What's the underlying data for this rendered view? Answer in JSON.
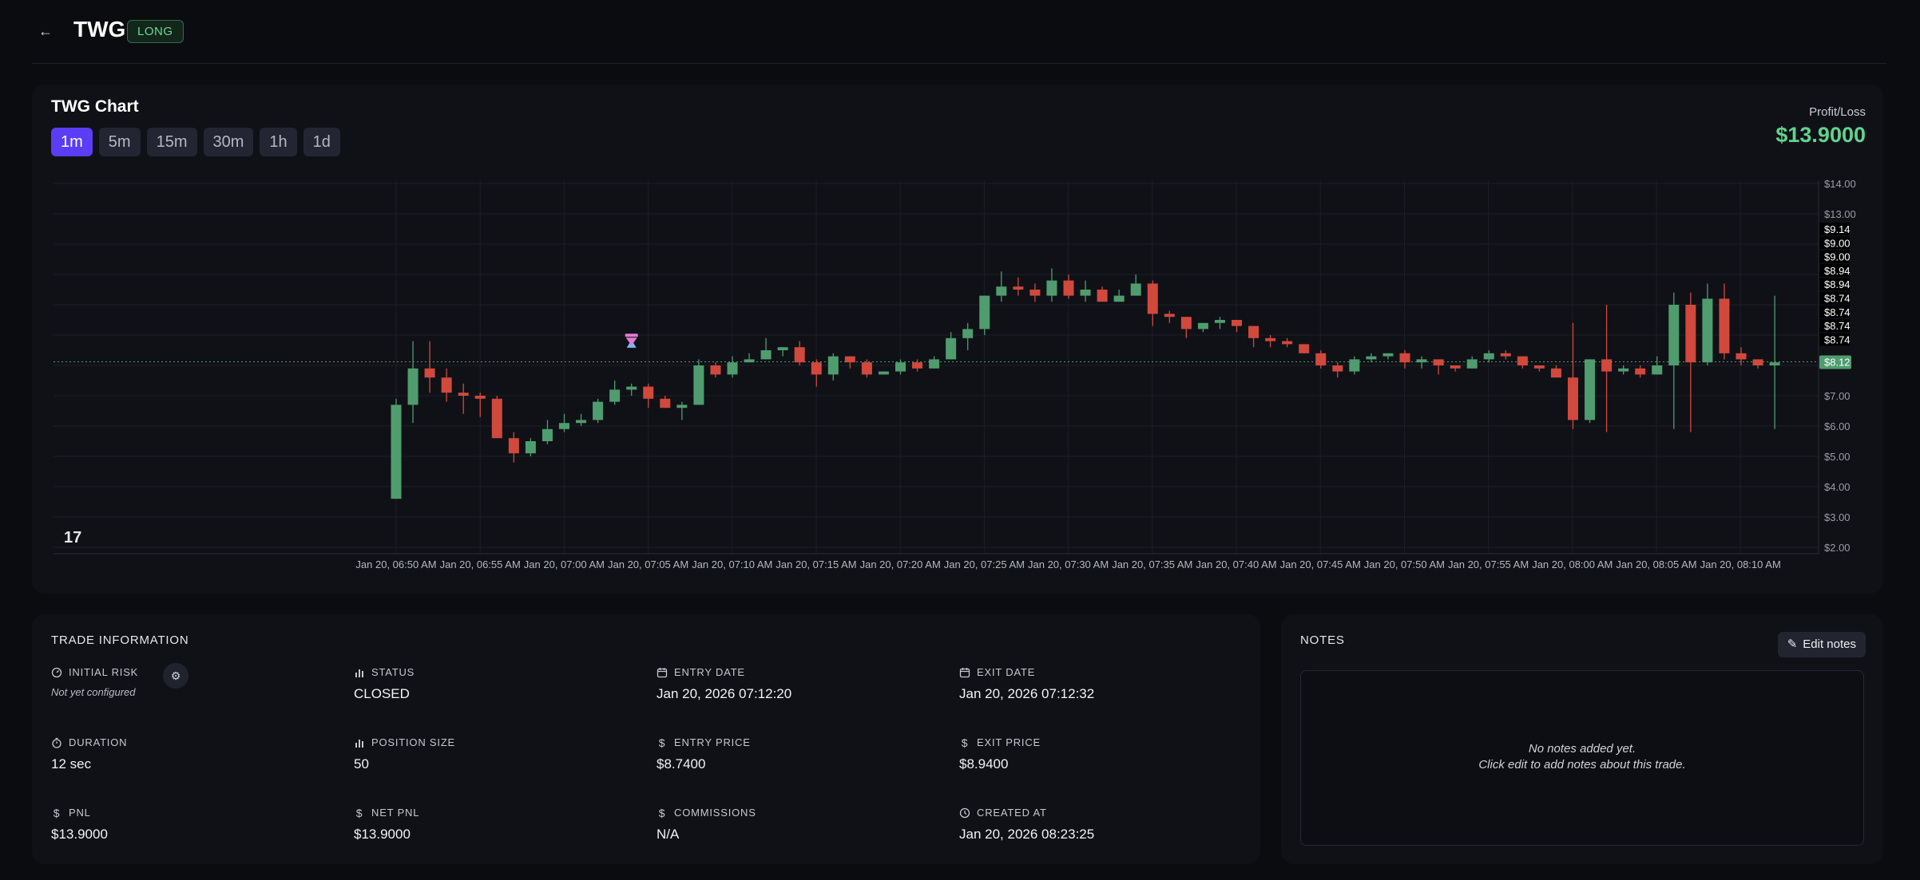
{
  "header": {
    "ticker": "TWG",
    "direction": "LONG"
  },
  "chart_card": {
    "title": "TWG Chart",
    "timeframes": [
      "1m",
      "5m",
      "15m",
      "30m",
      "1h",
      "1d"
    ],
    "active_timeframe": "1m",
    "profit_loss_label": "Profit/Loss",
    "profit_loss_value": "$13.9000"
  },
  "chart_data": {
    "type": "candlestick",
    "y_ticks": [
      "$14.00",
      "$13.00",
      "$7.00",
      "$6.00",
      "$5.00",
      "$4.00",
      "$3.00",
      "$2.00"
    ],
    "ylim": [
      2,
      14
    ],
    "x_ticks": [
      "Jan 20, 06:50 AM",
      "Jan 20, 06:55 AM",
      "Jan 20, 07:00 AM",
      "Jan 20, 07:05 AM",
      "Jan 20, 07:10 AM",
      "Jan 20, 07:15 AM",
      "Jan 20, 07:20 AM",
      "Jan 20, 07:25 AM",
      "Jan 20, 07:30 AM",
      "Jan 20, 07:35 AM",
      "Jan 20, 07:40 AM",
      "Jan 20, 07:45 AM",
      "Jan 20, 07:50 AM",
      "Jan 20, 07:55 AM",
      "Jan 20, 08:00 AM",
      "Jan 20, 08:05 AM",
      "Jan 20, 08:10 AM"
    ],
    "price_tags": [
      "$9.14",
      "$9.00",
      "$9.00",
      "$8.94",
      "$8.94",
      "$8.74",
      "$8.74",
      "$8.74",
      "$8.74"
    ],
    "current_price": "$8.12",
    "current_price_value": 8.12,
    "entry_marker_price": 8.74,
    "exit_marker_price": 8.94,
    "candles": [
      {
        "o": 3.6,
        "h": 6.9,
        "l": 3.6,
        "c": 6.7
      },
      {
        "o": 6.7,
        "h": 8.8,
        "l": 6.1,
        "c": 7.9
      },
      {
        "o": 7.9,
        "h": 8.8,
        "l": 7.1,
        "c": 7.6
      },
      {
        "o": 7.6,
        "h": 7.9,
        "l": 6.8,
        "c": 7.1
      },
      {
        "o": 7.1,
        "h": 7.4,
        "l": 6.4,
        "c": 7.0
      },
      {
        "o": 7.0,
        "h": 7.1,
        "l": 6.3,
        "c": 6.9
      },
      {
        "o": 6.9,
        "h": 7.0,
        "l": 5.6,
        "c": 5.6
      },
      {
        "o": 5.6,
        "h": 5.8,
        "l": 4.8,
        "c": 5.1
      },
      {
        "o": 5.1,
        "h": 5.6,
        "l": 5.0,
        "c": 5.5
      },
      {
        "o": 5.5,
        "h": 6.2,
        "l": 5.4,
        "c": 5.9
      },
      {
        "o": 5.9,
        "h": 6.4,
        "l": 5.8,
        "c": 6.1
      },
      {
        "o": 6.1,
        "h": 6.4,
        "l": 6.0,
        "c": 6.2
      },
      {
        "o": 6.2,
        "h": 6.9,
        "l": 6.1,
        "c": 6.8
      },
      {
        "o": 6.8,
        "h": 7.5,
        "l": 6.7,
        "c": 7.2
      },
      {
        "o": 7.2,
        "h": 7.4,
        "l": 7.0,
        "c": 7.3
      },
      {
        "o": 7.3,
        "h": 7.4,
        "l": 6.6,
        "c": 6.9
      },
      {
        "o": 6.9,
        "h": 7.0,
        "l": 6.6,
        "c": 6.6
      },
      {
        "o": 6.6,
        "h": 6.8,
        "l": 6.2,
        "c": 6.7
      },
      {
        "o": 6.7,
        "h": 8.2,
        "l": 6.7,
        "c": 8.0
      },
      {
        "o": 8.0,
        "h": 8.1,
        "l": 7.6,
        "c": 7.7
      },
      {
        "o": 7.7,
        "h": 8.3,
        "l": 7.6,
        "c": 8.1
      },
      {
        "o": 8.1,
        "h": 8.4,
        "l": 8.1,
        "c": 8.2
      },
      {
        "o": 8.2,
        "h": 8.9,
        "l": 8.2,
        "c": 8.5
      },
      {
        "o": 8.5,
        "h": 8.6,
        "l": 8.3,
        "c": 8.6
      },
      {
        "o": 8.6,
        "h": 8.8,
        "l": 8.0,
        "c": 8.1
      },
      {
        "o": 8.1,
        "h": 8.2,
        "l": 7.3,
        "c": 7.7
      },
      {
        "o": 7.7,
        "h": 8.4,
        "l": 7.5,
        "c": 8.3
      },
      {
        "o": 8.3,
        "h": 8.3,
        "l": 7.9,
        "c": 8.1
      },
      {
        "o": 8.1,
        "h": 8.2,
        "l": 7.6,
        "c": 7.7
      },
      {
        "o": 7.7,
        "h": 7.8,
        "l": 7.7,
        "c": 7.8
      },
      {
        "o": 7.8,
        "h": 8.2,
        "l": 7.7,
        "c": 8.1
      },
      {
        "o": 8.1,
        "h": 8.2,
        "l": 7.8,
        "c": 7.9
      },
      {
        "o": 7.9,
        "h": 8.3,
        "l": 7.9,
        "c": 8.2
      },
      {
        "o": 8.2,
        "h": 9.1,
        "l": 8.2,
        "c": 8.9
      },
      {
        "o": 8.9,
        "h": 9.4,
        "l": 8.5,
        "c": 9.2
      },
      {
        "o": 9.2,
        "h": 10.3,
        "l": 9.0,
        "c": 10.3
      },
      {
        "o": 10.3,
        "h": 11.1,
        "l": 10.1,
        "c": 10.6
      },
      {
        "o": 10.6,
        "h": 10.9,
        "l": 10.3,
        "c": 10.5
      },
      {
        "o": 10.5,
        "h": 10.7,
        "l": 10.1,
        "c": 10.3
      },
      {
        "o": 10.3,
        "h": 11.2,
        "l": 10.1,
        "c": 10.8
      },
      {
        "o": 10.8,
        "h": 11.0,
        "l": 10.2,
        "c": 10.3
      },
      {
        "o": 10.3,
        "h": 10.8,
        "l": 10.1,
        "c": 10.5
      },
      {
        "o": 10.5,
        "h": 10.6,
        "l": 10.1,
        "c": 10.1
      },
      {
        "o": 10.1,
        "h": 10.5,
        "l": 10.1,
        "c": 10.3
      },
      {
        "o": 10.3,
        "h": 11.0,
        "l": 10.3,
        "c": 10.7
      },
      {
        "o": 10.7,
        "h": 10.8,
        "l": 9.3,
        "c": 9.7
      },
      {
        "o": 9.7,
        "h": 9.8,
        "l": 9.4,
        "c": 9.6
      },
      {
        "o": 9.6,
        "h": 9.6,
        "l": 8.9,
        "c": 9.2
      },
      {
        "o": 9.2,
        "h": 9.4,
        "l": 9.1,
        "c": 9.4
      },
      {
        "o": 9.4,
        "h": 9.6,
        "l": 9.2,
        "c": 9.5
      },
      {
        "o": 9.5,
        "h": 9.5,
        "l": 9.1,
        "c": 9.3
      },
      {
        "o": 9.3,
        "h": 9.3,
        "l": 8.6,
        "c": 8.9
      },
      {
        "o": 8.9,
        "h": 9.0,
        "l": 8.6,
        "c": 8.8
      },
      {
        "o": 8.8,
        "h": 8.9,
        "l": 8.6,
        "c": 8.7
      },
      {
        "o": 8.7,
        "h": 8.7,
        "l": 8.4,
        "c": 8.4
      },
      {
        "o": 8.4,
        "h": 8.5,
        "l": 7.9,
        "c": 8.0
      },
      {
        "o": 8.0,
        "h": 8.1,
        "l": 7.6,
        "c": 7.8
      },
      {
        "o": 7.8,
        "h": 8.3,
        "l": 7.7,
        "c": 8.2
      },
      {
        "o": 8.2,
        "h": 8.4,
        "l": 8.1,
        "c": 8.3
      },
      {
        "o": 8.3,
        "h": 8.4,
        "l": 8.2,
        "c": 8.4
      },
      {
        "o": 8.4,
        "h": 8.5,
        "l": 7.9,
        "c": 8.1
      },
      {
        "o": 8.1,
        "h": 8.3,
        "l": 7.9,
        "c": 8.2
      },
      {
        "o": 8.2,
        "h": 8.2,
        "l": 7.7,
        "c": 8.0
      },
      {
        "o": 8.0,
        "h": 8.0,
        "l": 7.8,
        "c": 7.9
      },
      {
        "o": 7.9,
        "h": 8.3,
        "l": 7.9,
        "c": 8.2
      },
      {
        "o": 8.2,
        "h": 8.5,
        "l": 8.1,
        "c": 8.4
      },
      {
        "o": 8.4,
        "h": 8.5,
        "l": 8.2,
        "c": 8.3
      },
      {
        "o": 8.3,
        "h": 8.3,
        "l": 7.9,
        "c": 8.0
      },
      {
        "o": 8.0,
        "h": 8.0,
        "l": 7.8,
        "c": 7.9
      },
      {
        "o": 7.9,
        "h": 8.0,
        "l": 7.6,
        "c": 7.6
      },
      {
        "o": 7.6,
        "h": 9.4,
        "l": 5.9,
        "c": 6.2
      },
      {
        "o": 6.2,
        "h": 8.2,
        "l": 6.1,
        "c": 8.2
      },
      {
        "o": 8.2,
        "h": 10.0,
        "l": 5.8,
        "c": 7.8
      },
      {
        "o": 7.8,
        "h": 8.0,
        "l": 7.7,
        "c": 7.9
      },
      {
        "o": 7.9,
        "h": 8.0,
        "l": 7.6,
        "c": 7.7
      },
      {
        "o": 7.7,
        "h": 8.3,
        "l": 7.7,
        "c": 8.0
      },
      {
        "o": 8.0,
        "h": 10.4,
        "l": 5.9,
        "c": 10.0
      },
      {
        "o": 10.0,
        "h": 10.4,
        "l": 5.8,
        "c": 8.1
      },
      {
        "o": 8.1,
        "h": 10.7,
        "l": 8.0,
        "c": 10.2
      },
      {
        "o": 10.2,
        "h": 10.7,
        "l": 8.2,
        "c": 8.4
      },
      {
        "o": 8.4,
        "h": 8.6,
        "l": 8.0,
        "c": 8.2
      },
      {
        "o": 8.2,
        "h": 8.2,
        "l": 7.9,
        "c": 8.0
      },
      {
        "o": 8.0,
        "h": 10.3,
        "l": 5.9,
        "c": 8.1
      }
    ]
  },
  "trade_info": {
    "title": "TRADE INFORMATION",
    "initial_risk": {
      "label": "INITIAL RISK",
      "value": "Not yet configured"
    },
    "status": {
      "label": "STATUS",
      "value": "CLOSED"
    },
    "entry_date": {
      "label": "ENTRY DATE",
      "value": "Jan 20, 2026 07:12:20"
    },
    "exit_date": {
      "label": "EXIT DATE",
      "value": "Jan 20, 2026 07:12:32"
    },
    "duration": {
      "label": "DURATION",
      "value": "12 sec"
    },
    "position_size": {
      "label": "POSITION SIZE",
      "value": "50"
    },
    "entry_price": {
      "label": "ENTRY PRICE",
      "value": "$8.7400"
    },
    "exit_price": {
      "label": "EXIT PRICE",
      "value": "$8.9400"
    },
    "pnl": {
      "label": "PNL",
      "value": "$13.9000"
    },
    "net_pnl": {
      "label": "NET PNL",
      "value": "$13.9000"
    },
    "commissions": {
      "label": "COMMISSIONS",
      "value": "N/A"
    },
    "created_at": {
      "label": "CREATED AT",
      "value": "Jan 20, 2026 08:23:25"
    }
  },
  "notes": {
    "title": "NOTES",
    "edit_label": "Edit notes",
    "empty_line1": "No notes added yet.",
    "empty_line2": "Click edit to add notes about this trade."
  },
  "colors": {
    "bull": "#4f9d6e",
    "bear": "#d1493c",
    "accent": "#5b3df5",
    "profit": "#5fd38d",
    "price_line": "#4f9d6e"
  }
}
